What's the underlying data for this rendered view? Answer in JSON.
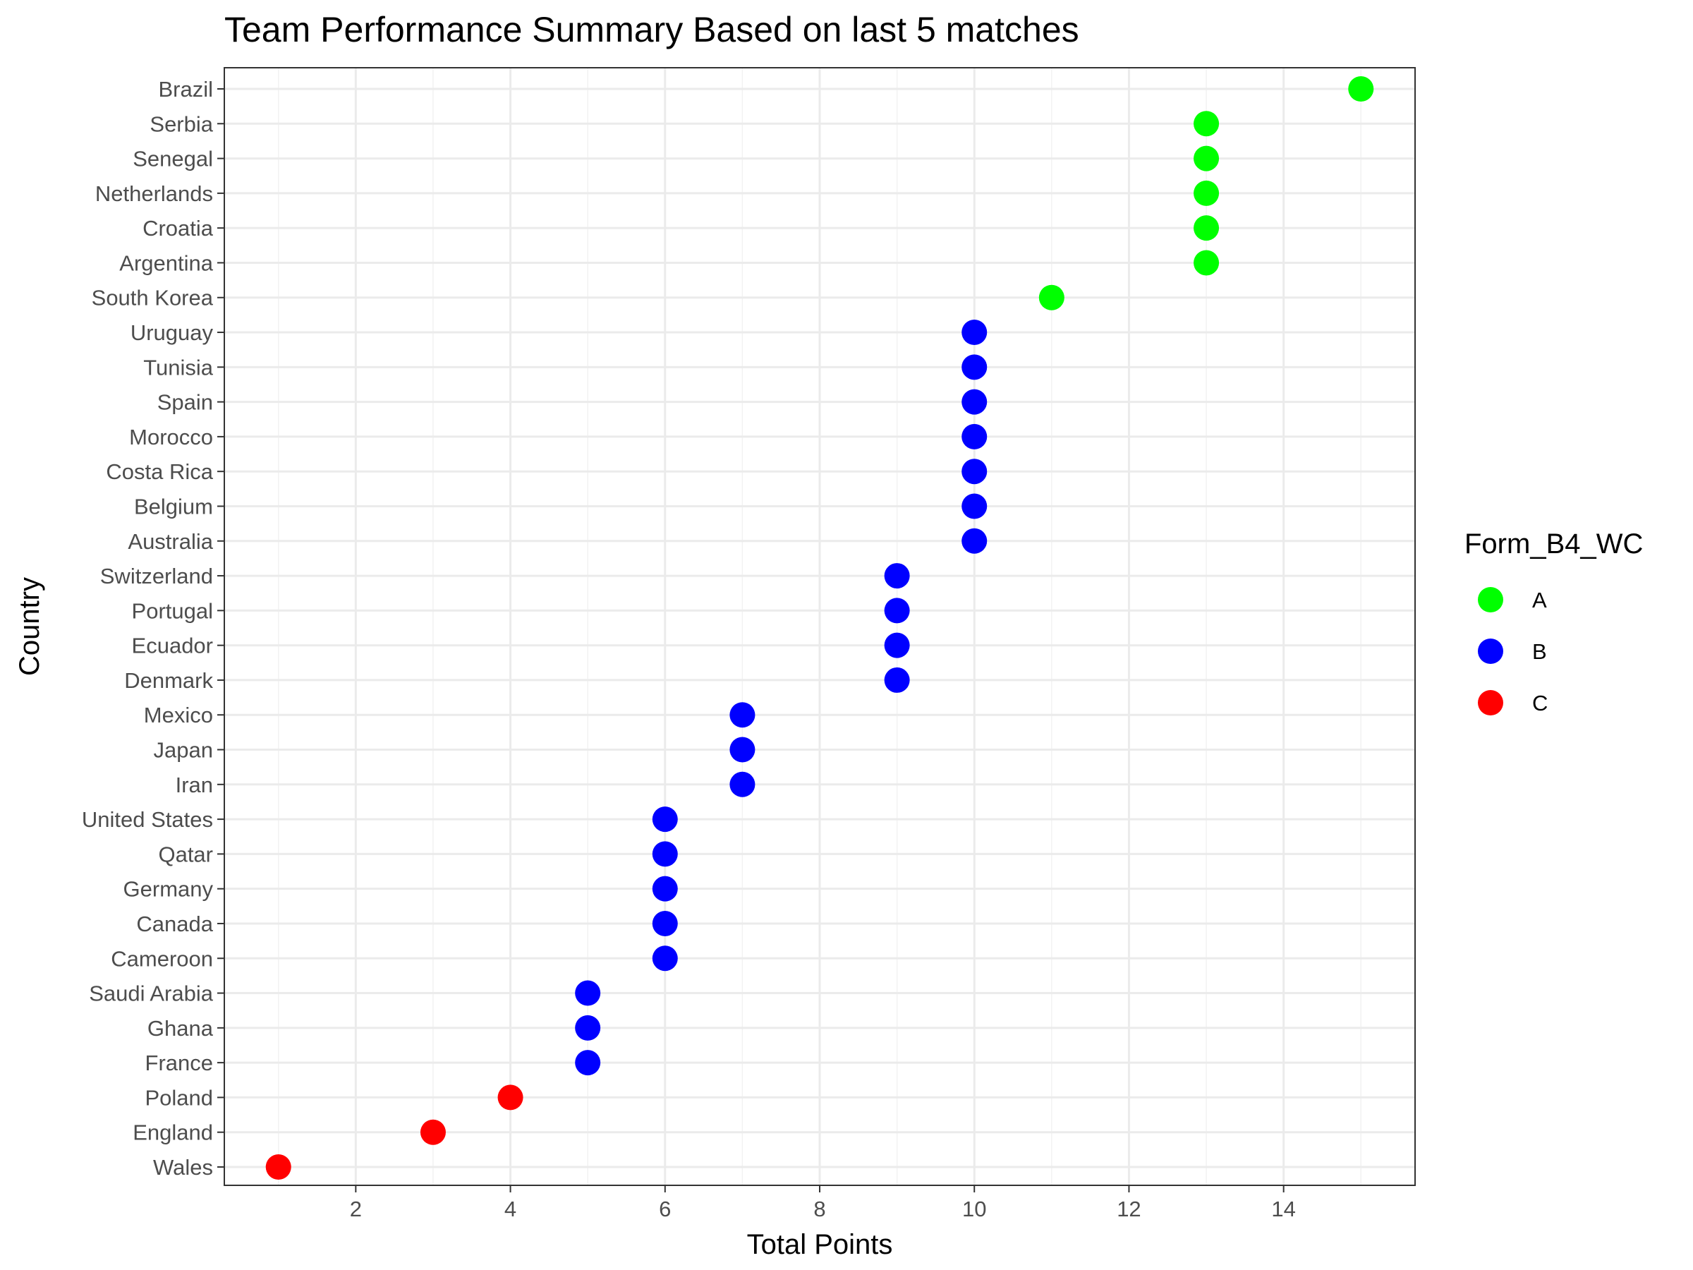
{
  "chart_data": {
    "type": "scatter",
    "title": "Team Performance Summary Based on last 5 matches",
    "xlabel": "Total Points",
    "ylabel": "Country",
    "xlim": [
      0.3,
      15.7
    ],
    "xticks": [
      2,
      4,
      6,
      8,
      10,
      12,
      14
    ],
    "grid": true,
    "legend": {
      "title": "Form_B4_WC",
      "position": "right",
      "entries": [
        {
          "label": "A",
          "color": "#00ff00"
        },
        {
          "label": "B",
          "color": "#0000ff"
        },
        {
          "label": "C",
          "color": "#ff0000"
        }
      ]
    },
    "categories": [
      "Brazil",
      "Serbia",
      "Senegal",
      "Netherlands",
      "Croatia",
      "Argentina",
      "South Korea",
      "Uruguay",
      "Tunisia",
      "Spain",
      "Morocco",
      "Costa Rica",
      "Belgium",
      "Australia",
      "Switzerland",
      "Portugal",
      "Ecuador",
      "Denmark",
      "Mexico",
      "Japan",
      "Iran",
      "United States",
      "Qatar",
      "Germany",
      "Canada",
      "Cameroon",
      "Saudi Arabia",
      "Ghana",
      "France",
      "Poland",
      "England",
      "Wales"
    ],
    "points": [
      {
        "country": "Brazil",
        "x": 15,
        "form": "A"
      },
      {
        "country": "Serbia",
        "x": 13,
        "form": "A"
      },
      {
        "country": "Senegal",
        "x": 13,
        "form": "A"
      },
      {
        "country": "Netherlands",
        "x": 13,
        "form": "A"
      },
      {
        "country": "Croatia",
        "x": 13,
        "form": "A"
      },
      {
        "country": "Argentina",
        "x": 13,
        "form": "A"
      },
      {
        "country": "South Korea",
        "x": 11,
        "form": "A"
      },
      {
        "country": "Uruguay",
        "x": 10,
        "form": "B"
      },
      {
        "country": "Tunisia",
        "x": 10,
        "form": "B"
      },
      {
        "country": "Spain",
        "x": 10,
        "form": "B"
      },
      {
        "country": "Morocco",
        "x": 10,
        "form": "B"
      },
      {
        "country": "Costa Rica",
        "x": 10,
        "form": "B"
      },
      {
        "country": "Belgium",
        "x": 10,
        "form": "B"
      },
      {
        "country": "Australia",
        "x": 10,
        "form": "B"
      },
      {
        "country": "Switzerland",
        "x": 9,
        "form": "B"
      },
      {
        "country": "Portugal",
        "x": 9,
        "form": "B"
      },
      {
        "country": "Ecuador",
        "x": 9,
        "form": "B"
      },
      {
        "country": "Denmark",
        "x": 9,
        "form": "B"
      },
      {
        "country": "Mexico",
        "x": 7,
        "form": "B"
      },
      {
        "country": "Japan",
        "x": 7,
        "form": "B"
      },
      {
        "country": "Iran",
        "x": 7,
        "form": "B"
      },
      {
        "country": "United States",
        "x": 6,
        "form": "B"
      },
      {
        "country": "Qatar",
        "x": 6,
        "form": "B"
      },
      {
        "country": "Germany",
        "x": 6,
        "form": "B"
      },
      {
        "country": "Canada",
        "x": 6,
        "form": "B"
      },
      {
        "country": "Cameroon",
        "x": 6,
        "form": "B"
      },
      {
        "country": "Saudi Arabia",
        "x": 5,
        "form": "B"
      },
      {
        "country": "Ghana",
        "x": 5,
        "form": "B"
      },
      {
        "country": "France",
        "x": 5,
        "form": "B"
      },
      {
        "country": "Poland",
        "x": 4,
        "form": "C"
      },
      {
        "country": "England",
        "x": 3,
        "form": "C"
      },
      {
        "country": "Wales",
        "x": 1,
        "form": "C"
      }
    ]
  }
}
